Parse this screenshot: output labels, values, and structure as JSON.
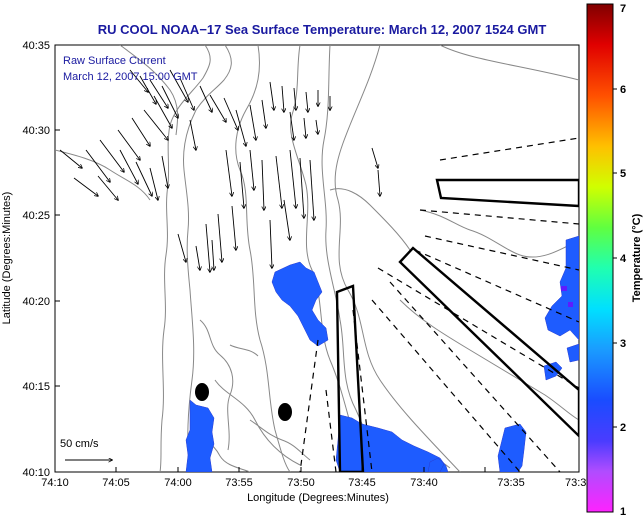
{
  "title": "RU COOL  NOAA−17  Sea Surface Temperature:  March 12, 2007 1524 GMT",
  "annotations": {
    "line1": "Raw Surface Current",
    "line2": "March 12, 2007 15:00 GMT",
    "scale_label": "50 cm/s"
  },
  "axes": {
    "xlabel": "Longitude (Degrees:Minutes)",
    "ylabel": "Latitude (Degrees:Minutes)",
    "xticks": [
      "74:10",
      "74:05",
      "74:00",
      "73:55",
      "73:50",
      "73:45",
      "73:40",
      "73:35",
      "73:3"
    ],
    "yticks": [
      "40:35",
      "40:30",
      "40:25",
      "40:20",
      "40:15",
      "40:10"
    ]
  },
  "colorbar": {
    "label": "Temperature (°C)",
    "ticks": [
      "7",
      "6",
      "5",
      "4",
      "3",
      "2",
      "1"
    ]
  },
  "colors": {
    "title": "#1a1aa0",
    "sst_patch": "#1e5cff",
    "land_contour": "#888888"
  }
}
